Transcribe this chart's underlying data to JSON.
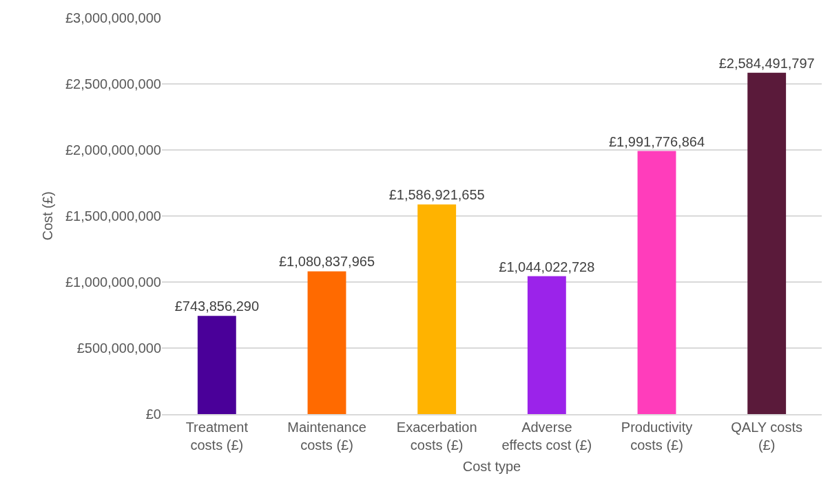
{
  "chart_data": {
    "type": "bar",
    "xlabel": "Cost type",
    "ylabel": "Cost (£)",
    "categories": [
      "Treatment\ncosts (£)",
      "Maintenance\ncosts (£)",
      "Exacerbation\ncosts (£)",
      "Adverse\neffects cost (£)",
      "Productivity\ncosts (£)",
      "QALY costs\n(£)"
    ],
    "values": [
      743856290,
      1080837965,
      1586921655,
      1044022728,
      1991776864,
      2584491797
    ],
    "value_labels": [
      "£743,856,290",
      "£1,080,837,965",
      "£1,586,921,655",
      "£1,044,022,728",
      "£1,991,776,864",
      "£2,584,491,797"
    ],
    "colors": [
      "#4a0099",
      "#ff6a00",
      "#ffb300",
      "#9b23ea",
      "#ff3dbb",
      "#5a1a3a"
    ],
    "ylim": [
      0,
      3000000000
    ],
    "yticks": [
      {
        "value": 0,
        "label": "£0"
      },
      {
        "value": 500000000,
        "label": "£500,000,000"
      },
      {
        "value": 1000000000,
        "label": "£1,000,000,000"
      },
      {
        "value": 1500000000,
        "label": "£1,500,000,000"
      },
      {
        "value": 2000000000,
        "label": "£2,000,000,000"
      },
      {
        "value": 2500000000,
        "label": "£2,500,000,000"
      },
      {
        "value": 3000000000,
        "label": "£3,000,000,000"
      }
    ],
    "grid": "y"
  }
}
